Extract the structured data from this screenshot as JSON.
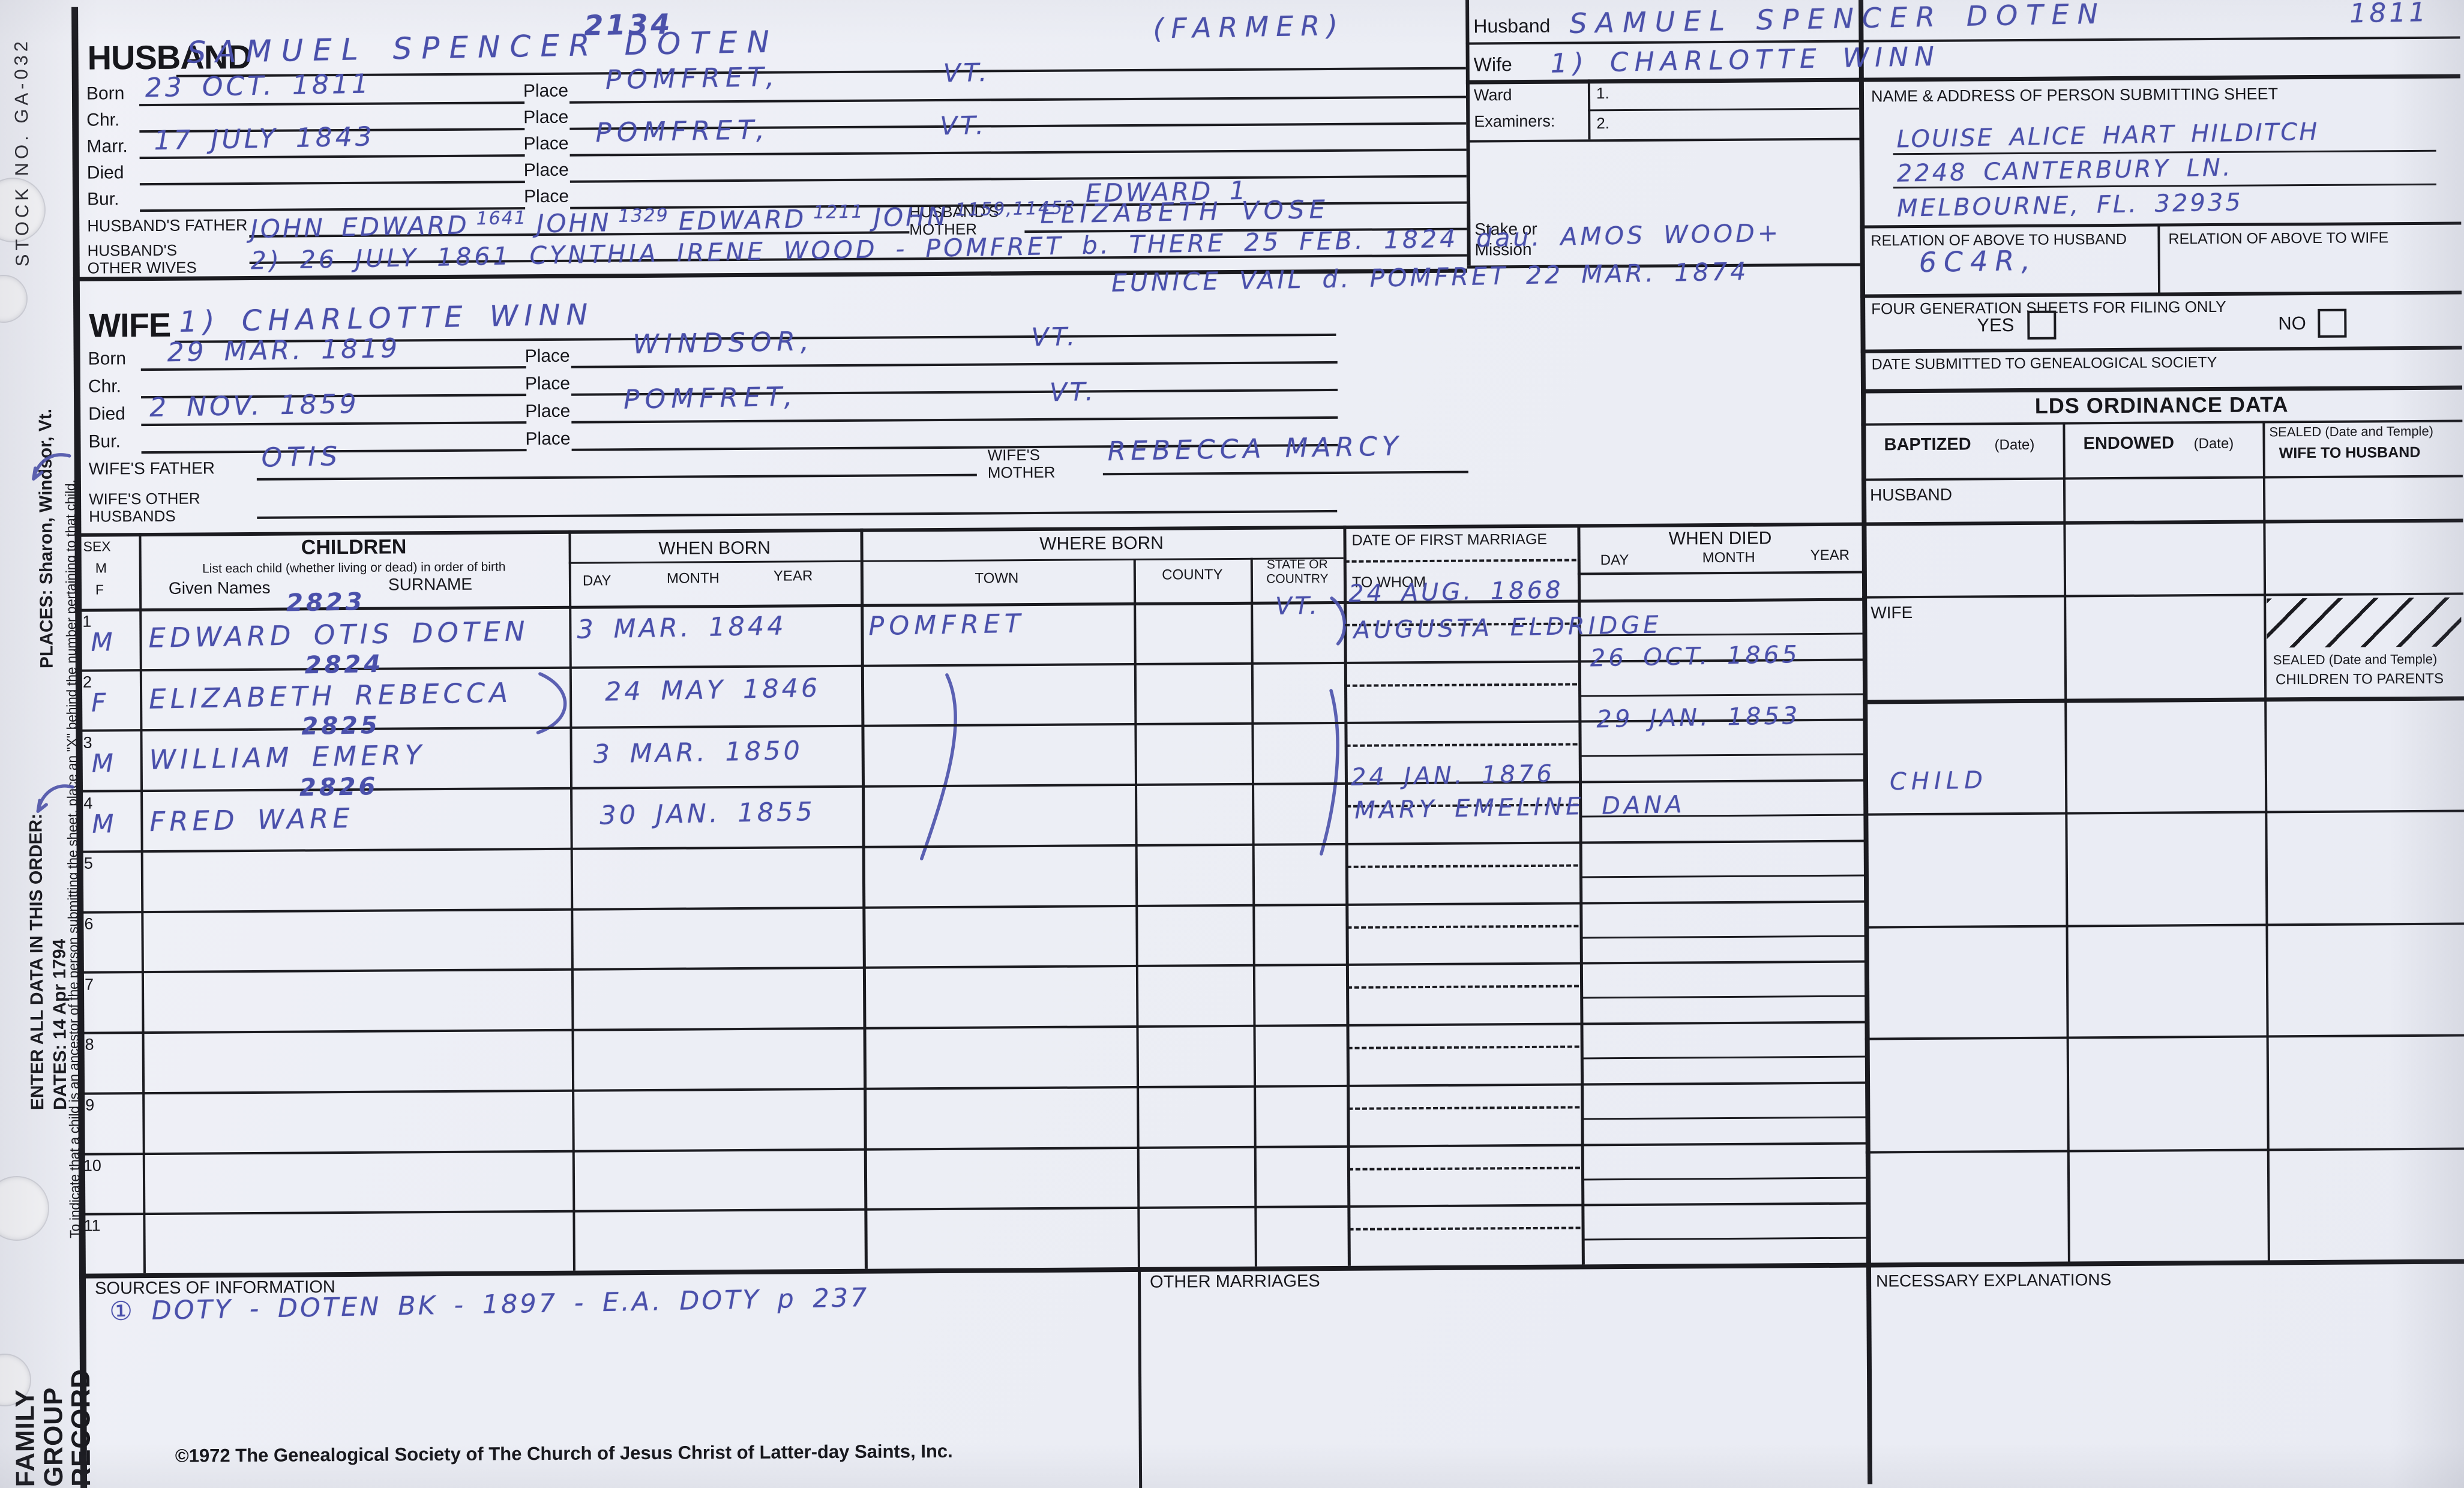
{
  "document": {
    "stock_number": "STOCK NO. GA-032",
    "form_title_lines": "FAMILY\nGROUP\nRECORD",
    "copyright": "©1972 The Genealogical Society of The Church of Jesus Christ of Latter-day Saints, Inc."
  },
  "margin_notes": {
    "places": "PLACES: Sharon, Windsor, Vt.",
    "order_line1": "ENTER ALL DATA IN THIS ORDER:",
    "order_line2": "DATES: 14 Apr 1794",
    "ancestor_note": "To indicate that a child is an ancestor of the person submitting the sheet, place an \"X\" behind the number pertaining to that child."
  },
  "labels": {
    "born": "Born",
    "chr": "Chr.",
    "marr": "Marr.",
    "died": "Died",
    "bur": "Bur.",
    "place": "Place"
  },
  "husband": {
    "section_label": "HUSBAND",
    "id_number": "2134",
    "name": "SAMUEL SPENCER DOTEN",
    "occupation": "(FARMER)",
    "born": "23 OCT. 1811",
    "born_place": "POMFRET,",
    "born_state": "VT.",
    "marr": "17 JULY 1843",
    "marr_place": "POMFRET,",
    "marr_state": "VT.",
    "father_label": "HUSBAND'S FATHER",
    "father_segments": [
      {
        "t": "JOHN EDWARD",
        "n": "1641"
      },
      {
        "t": "JOHN",
        "n": "1329"
      },
      {
        "t": "EDWARD",
        "n": "1211"
      },
      {
        "t": "JOHN",
        "n": "1159,11453"
      },
      {
        "t": "EDWARD 1",
        "n": "",
        "r": true
      }
    ],
    "mother_label1": "HUSBAND'S",
    "mother_label2": "MOTHER",
    "mother": "ELIZABETH VOSE",
    "other_wives_label1": "HUSBAND'S",
    "other_wives_label2": "OTHER WIVES",
    "other_wives": "2) 26 JULY 1861 CYNTHIA IRENE WOOD - POMFRET b. THERE 25 FEB. 1824 dau. AMOS WOOD+",
    "other_wives_cont": "EUNICE VAIL d. POMFRET 22 MAR. 1874"
  },
  "wife": {
    "section_label": "WIFE",
    "name": "1) CHARLOTTE WINN",
    "born": "29 MAR. 1819",
    "born_place": "WINDSOR,",
    "born_state": "VT.",
    "died": "2 NOV. 1859",
    "died_place": "POMFRET,",
    "died_state": "VT.",
    "father_label": "WIFE'S FATHER",
    "father": "OTIS",
    "mother_label1": "WIFE'S",
    "mother_label2": "MOTHER",
    "mother": "REBECCA MARCY",
    "other_husbands_label1": "WIFE'S OTHER",
    "other_husbands_label2": "HUSBANDS"
  },
  "header_right": {
    "husband_label": "Husband",
    "husband_name": "SAMUEL SPENCER DOTEN",
    "husband_year": "1811",
    "wife_label": "Wife",
    "wife_name": "1) CHARLOTTE WINN",
    "ward_label": "Ward",
    "examiners_label": "Examiners:",
    "examiner1": "1.",
    "examiner2": "2.",
    "stake_label1": "Stake or",
    "stake_label2": "Mission",
    "submitter_label": "NAME & ADDRESS OF PERSON SUBMITTING SHEET",
    "submitter_line1": "LOUISE ALICE HART HILDITCH",
    "submitter_line2": "2248 CANTERBURY LN.",
    "submitter_line3": "MELBOURNE, FL. 32935",
    "relation_husband_label": "RELATION OF ABOVE TO HUSBAND",
    "relation_husband_value": "6C4R,",
    "relation_wife_label": "RELATION OF ABOVE TO WIFE",
    "four_gen_label": "FOUR GENERATION SHEETS FOR FILING ONLY",
    "yes_label": "YES",
    "no_label": "NO",
    "date_submitted_label": "DATE SUBMITTED TO GENEALOGICAL SOCIETY"
  },
  "ordinance": {
    "title": "LDS ORDINANCE DATA",
    "baptized": "BAPTIZED",
    "endowed": "ENDOWED",
    "date_hint": "(Date)",
    "sealed_wife1": "SEALED (Date and Temple)",
    "sealed_wife2": "WIFE TO HUSBAND",
    "husband_row": "HUSBAND",
    "wife_row": "WIFE",
    "sealed_children1": "SEALED (Date and Temple)",
    "sealed_children2": "CHILDREN TO PARENTS",
    "annotation_child": "CHILD"
  },
  "children_table": {
    "sex_label": "SEX",
    "sex_m": "M",
    "sex_f": "F",
    "children_label": "CHILDREN",
    "children_note": "List each child (whether living or dead) in order of birth",
    "given_names": "Given Names",
    "surname": "SURNAME",
    "when_born": "WHEN BORN",
    "day": "DAY",
    "month": "MONTH",
    "year": "YEAR",
    "where_born": "WHERE BORN",
    "town": "TOWN",
    "county": "COUNTY",
    "state1": "STATE OR",
    "state2": "COUNTRY",
    "marriage_label": "DATE OF FIRST MARRIAGE",
    "to_whom": "TO WHOM",
    "when_died": "WHEN DIED",
    "rows": [
      {
        "num": "1",
        "sex": "M",
        "id_number": "2823",
        "name": "EDWARD OTIS DOTEN",
        "born": "3 MAR. 1844",
        "town": "POMFRET",
        "state": "VT.",
        "marriage_date": "24 AUG. 1868",
        "to_whom": "AUGUSTA ELDRIDGE",
        "died": ""
      },
      {
        "num": "2",
        "sex": "F",
        "id_number": "2824",
        "name": "ELIZABETH REBECCA",
        "born": "24 MAY 1846",
        "town": "",
        "state": "",
        "marriage_date": "",
        "to_whom": "",
        "died": "26 OCT. 1865"
      },
      {
        "num": "3",
        "sex": "M",
        "id_number": "2825",
        "name": "WILLIAM EMERY",
        "born": "3 MAR. 1850",
        "town": "",
        "state": "",
        "marriage_date": "",
        "to_whom": "",
        "died": "29 JAN. 1853"
      },
      {
        "num": "4",
        "sex": "M",
        "id_number": "2826",
        "name": "FRED WARE",
        "born": "30 JAN. 1855",
        "town": "",
        "state": "",
        "marriage_date": "24 JAN. 1876",
        "to_whom": "MARY EMELINE DANA",
        "died": ""
      },
      {
        "num": "5"
      },
      {
        "num": "6"
      },
      {
        "num": "7"
      },
      {
        "num": "8"
      },
      {
        "num": "9"
      },
      {
        "num": "10"
      },
      {
        "num": "11"
      }
    ]
  },
  "footer": {
    "sources_label": "SOURCES OF INFORMATION",
    "sources_value": "① DOTY - DOTEN BK - 1897 - E.A. DOTY p 237",
    "other_marriages_label": "OTHER MARRIAGES",
    "necessary_label": "NECESSARY EXPLANATIONS"
  }
}
